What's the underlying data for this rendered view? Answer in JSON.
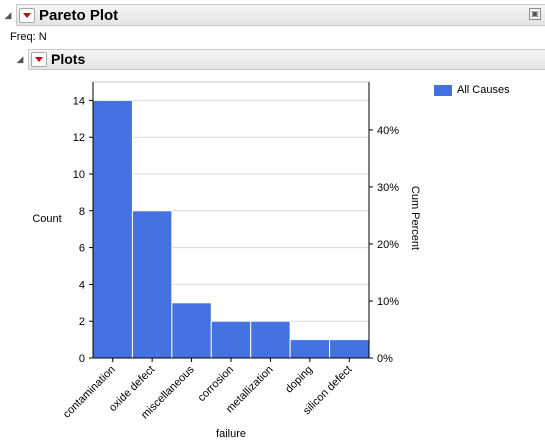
{
  "report": {
    "title": "Pareto Plot",
    "freq_label": "Freq: N",
    "plots_title": "Plots",
    "corner_icon": "maximize-icon"
  },
  "colors": {
    "bar": "#4472e0",
    "grid": "#d9d9d9",
    "red_triangle": "#d40000"
  },
  "chart_data": {
    "type": "bar",
    "categories": [
      "contamination",
      "oxide defect",
      "miscellaneous",
      "corrosion",
      "metallization",
      "doping",
      "silicon defect"
    ],
    "series": [
      {
        "name": "All Causes",
        "values": [
          14,
          8,
          3,
          2,
          2,
          1,
          1
        ]
      }
    ],
    "xlabel": "failure",
    "ylabel": "Count",
    "y2label": "Cum Percent",
    "ylim": [
      0,
      15
    ],
    "yticks": [
      0,
      2,
      4,
      6,
      8,
      10,
      12,
      14
    ],
    "y2lim": [
      0,
      48.4
    ],
    "y2ticks": [
      0,
      10,
      20,
      30,
      40
    ],
    "y2ticklabels": [
      "0%",
      "10%",
      "20%",
      "30%",
      "40%"
    ],
    "grid": true,
    "legend_position": "top-right"
  }
}
